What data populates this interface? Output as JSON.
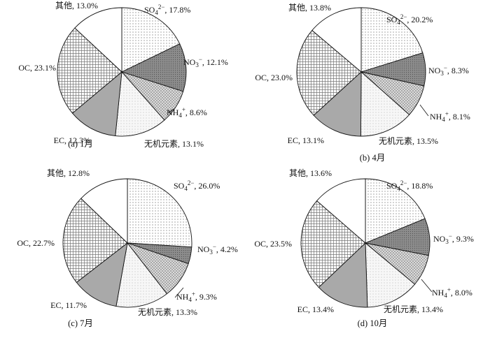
{
  "chart_data": [
    {
      "type": "pie",
      "caption": "(a)  1月",
      "categories": [
        "SO₄²⁻",
        "NO₃⁻",
        "NH₄⁺",
        "无机元素",
        "EC",
        "OC",
        "其他"
      ],
      "values": [
        17.8,
        12.1,
        8.6,
        13.1,
        12.3,
        23.1,
        13.0
      ],
      "labels": [
        "SO₄²⁻, 17.8%",
        "NO₃⁻, 12.1%",
        "NH₄⁺, 8.6%",
        "无机元素, 13.1%",
        "EC, 12.3%",
        "OC, 23.1%",
        "其他, 13.0%"
      ]
    },
    {
      "type": "pie",
      "caption": "(b)  4月",
      "categories": [
        "SO₄²⁻",
        "NO₃⁻",
        "NH₄⁺",
        "无机元素",
        "EC",
        "OC",
        "其他"
      ],
      "values": [
        20.2,
        8.3,
        8.1,
        13.5,
        13.1,
        23.0,
        13.8
      ],
      "labels": [
        "SO₄²⁻, 20.2%",
        "NO₃⁻, 8.3%",
        "NH₄⁺, 8.1%",
        "无机元素, 13.5%",
        "EC, 13.1%",
        "OC, 23.0%",
        "其他, 13.8%"
      ]
    },
    {
      "type": "pie",
      "caption": "(c)  7月",
      "categories": [
        "SO₄²⁻",
        "NO₃⁻",
        "NH₄⁺",
        "无机元素",
        "EC",
        "OC",
        "其他"
      ],
      "values": [
        26.0,
        4.2,
        9.3,
        13.3,
        11.7,
        22.7,
        12.8
      ],
      "labels": [
        "SO₄²⁻, 26.0%",
        "NO₃⁻, 4.2%",
        "NH₄⁺, 9.3%",
        "无机元素, 13.3%",
        "EC, 11.7%",
        "OC, 22.7%",
        "其他, 12.8%"
      ]
    },
    {
      "type": "pie",
      "caption": "(d)  10月",
      "categories": [
        "SO₄²⁻",
        "NO₃⁻",
        "NH₄⁺",
        "无机元素",
        "EC",
        "OC",
        "其他"
      ],
      "values": [
        18.8,
        9.3,
        8.0,
        13.4,
        13.4,
        23.5,
        13.6
      ],
      "labels": [
        "SO₄²⁻, 18.8%",
        "NO₃⁻, 9.3%",
        "NH₄⁺, 8.0%",
        "无机元素, 13.4%",
        "EC, 13.4%",
        "OC, 23.5%",
        "其他, 13.6%"
      ]
    }
  ]
}
